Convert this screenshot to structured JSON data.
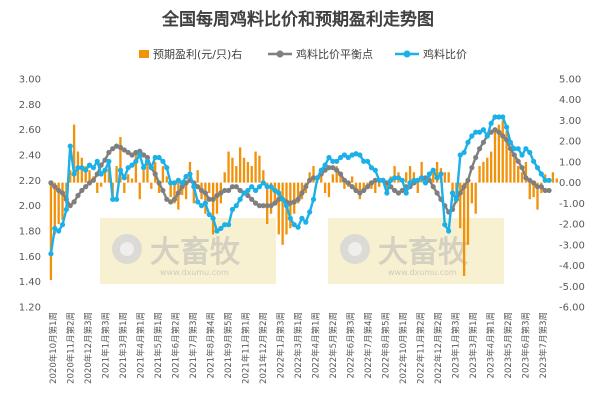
{
  "chart_data": {
    "type": "bar+line",
    "title": "全国每周鸡料比价和预期盈利走势图",
    "legend": [
      "预期盈利(元/只)右",
      "鸡料比价平衡点",
      "鸡料比价"
    ],
    "left_axis": {
      "min": 1.2,
      "max": 3.0,
      "step": 0.2,
      "ticks": [
        "1.20",
        "1.40",
        "1.60",
        "1.80",
        "2.00",
        "2.20",
        "2.40",
        "2.60",
        "2.80",
        "3.00"
      ]
    },
    "right_axis": {
      "min": -6.0,
      "max": 5.0,
      "step": 1.0,
      "ticks": [
        "-6.00",
        "-5.00",
        "-4.00",
        "-3.00",
        "-2.00",
        "-1.00",
        "0.00",
        "1.00",
        "2.00",
        "3.00",
        "4.00",
        "5.00"
      ]
    },
    "x_labels": [
      "2020年10月第1周",
      "2020年11月第2周",
      "2020年12月第3周",
      "2021年1月第3周",
      "2021年3月第1周",
      "2021年4月第1周",
      "2021年5月第1周",
      "2021年6月第2周",
      "2021年7月第3周",
      "2021年8月第4周",
      "2021年9月第5周",
      "2021年11月第1周",
      "2021年12月第2周",
      "2022年1月第3周",
      "2022年3月第1周",
      "2022年4月第1周",
      "2022年5月第2周",
      "2022年6月第3周",
      "2022年7月第4周",
      "2022年8月第5周",
      "2022年10月第1周",
      "2022年11月第2周",
      "2022年12月第2周",
      "2023年1月第3周",
      "2023年3月第1周",
      "2023年4月第1周",
      "2023年5月第2周",
      "2023年6月第3周",
      "2023年7月第3周"
    ],
    "colors": {
      "profit": "#F2920A",
      "breakeven": "#7F7F7F",
      "ratio": "#1BB0E8"
    },
    "series": [
      {
        "name": "鸡料比价",
        "values": [
          1.62,
          1.82,
          1.8,
          1.85,
          1.97,
          2.47,
          2.25,
          2.3,
          2.3,
          2.28,
          2.32,
          2.3,
          2.35,
          2.25,
          2.28,
          2.35,
          2.05,
          2.05,
          2.28,
          2.22,
          2.3,
          2.32,
          2.35,
          2.4,
          2.3,
          2.35,
          2.3,
          2.38,
          2.38,
          2.35,
          2.3,
          2.18,
          2.18,
          2.2,
          2.18,
          2.23,
          2.25,
          2.15,
          2.03,
          2.0,
          2.02,
          1.93,
          1.9,
          1.8,
          1.82,
          1.85,
          1.85,
          1.97,
          2.0,
          2.05,
          2.1,
          2.12,
          2.15,
          2.12,
          2.15,
          2.18,
          2.15,
          2.15,
          2.12,
          2.1,
          2.05,
          2.0,
          1.9,
          1.85,
          1.83,
          1.9,
          1.87,
          1.95,
          2.05,
          2.22,
          2.28,
          2.32,
          2.38,
          2.35,
          2.35,
          2.38,
          2.4,
          2.38,
          2.4,
          2.41,
          2.4,
          2.35,
          2.35,
          2.3,
          2.28,
          2.2,
          2.2,
          2.1,
          2.2,
          2.22,
          2.22,
          2.2,
          2.1,
          2.18,
          2.2,
          2.2,
          2.22,
          2.18,
          2.25,
          2.28,
          2.22,
          2.25,
          1.85,
          1.8,
          2.1,
          2.05,
          2.4,
          2.42,
          2.5,
          2.55,
          2.58,
          2.58,
          2.6,
          2.55,
          2.65,
          2.7,
          2.7,
          2.7,
          2.62,
          2.5,
          2.45,
          2.45,
          2.4,
          2.45,
          2.42,
          2.35,
          2.3,
          2.25,
          2.2,
          2.2
        ]
      },
      {
        "name": "鸡料比价平衡点",
        "values": [
          2.18,
          2.15,
          2.12,
          2.1,
          2.05,
          2.0,
          2.03,
          2.08,
          2.12,
          2.15,
          2.18,
          2.2,
          2.25,
          2.32,
          2.36,
          2.42,
          2.45,
          2.47,
          2.46,
          2.44,
          2.42,
          2.4,
          2.42,
          2.43,
          2.4,
          2.38,
          2.3,
          2.25,
          2.18,
          2.12,
          2.05,
          2.03,
          2.05,
          2.1,
          2.15,
          2.18,
          2.2,
          2.18,
          2.15,
          2.12,
          2.1,
          2.05,
          2.05,
          2.08,
          2.1,
          2.12,
          2.12,
          2.15,
          2.15,
          2.12,
          2.1,
          2.08,
          2.05,
          2.02,
          2.0,
          2.0,
          2.0,
          2.0,
          2.02,
          2.05,
          2.05,
          2.03,
          2.02,
          2.03,
          2.05,
          2.1,
          2.15,
          2.2,
          2.22,
          2.22,
          2.25,
          2.28,
          2.3,
          2.3,
          2.28,
          2.25,
          2.2,
          2.18,
          2.15,
          2.12,
          2.1,
          2.12,
          2.15,
          2.18,
          2.2,
          2.2,
          2.2,
          2.18,
          2.15,
          2.12,
          2.1,
          2.12,
          2.15,
          2.15,
          2.18,
          2.2,
          2.22,
          2.22,
          2.2,
          2.15,
          2.1,
          2.05,
          2.0,
          1.95,
          1.97,
          2.05,
          2.1,
          2.15,
          2.2,
          2.3,
          2.38,
          2.45,
          2.5,
          2.55,
          2.58,
          2.6,
          2.58,
          2.55,
          2.52,
          2.45,
          2.4,
          2.35,
          2.3,
          2.22,
          2.2,
          2.18,
          2.15,
          2.15,
          2.12,
          2.12
        ]
      },
      {
        "name": "预期盈利(元/只)右",
        "values": [
          -4.7,
          -2.5,
          -2.0,
          -1.8,
          -1.0,
          0.6,
          2.8,
          1.5,
          1.2,
          0.8,
          0.6,
          0.3,
          -0.5,
          -0.2,
          0.5,
          1.0,
          -0.8,
          0.8,
          2.2,
          -0.5,
          0.4,
          0.2,
          1.5,
          -0.8,
          0.6,
          1.2,
          -0.3,
          1.0,
          -0.5,
          0.8,
          0.3,
          -0.7,
          -1.0,
          -1.3,
          -0.6,
          -0.8,
          1.0,
          -1.0,
          0.6,
          -0.8,
          -1.5,
          -0.5,
          -2.5,
          -1.5,
          -1.0,
          0.5,
          1.5,
          1.2,
          0.8,
          1.7,
          1.2,
          1.0,
          0.8,
          1.5,
          1.3,
          0.6,
          -2.0,
          -1.5,
          -1.0,
          -2.5,
          -3.0,
          -2.5,
          -2.2,
          -1.5,
          -1.0,
          -0.8,
          -0.5,
          0.5,
          0.8,
          0.3,
          0.3,
          -0.5,
          -0.7,
          0.4,
          0.8,
          0.5,
          -0.3,
          -0.2,
          0.3,
          -0.5,
          -0.8,
          -0.4,
          -0.3,
          -0.3,
          -0.5,
          -0.2,
          0.1,
          -0.5,
          0.3,
          0.8,
          0.5,
          0.2,
          0.5,
          0.8,
          0.5,
          -0.5,
          1.0,
          0.3,
          0.4,
          0.7,
          1.0,
          0.7,
          0.5,
          0.5,
          -0.5,
          -1.0,
          -2.2,
          -4.5,
          -3.0,
          -1.0,
          -1.5,
          0.8,
          1.0,
          1.2,
          1.5,
          2.5,
          2.8,
          3.0,
          2.5,
          1.5,
          1.2,
          0.8,
          0.5,
          1.0,
          -0.8,
          -0.7,
          -1.3,
          -0.5,
          0.4,
          0.2,
          0.5,
          0.2
        ]
      }
    ],
    "watermarks": [
      {
        "text": "大畜牧",
        "url": "www.dxumu.com"
      },
      {
        "text": "大畜牧",
        "url": "www.dxumu.com"
      }
    ]
  }
}
